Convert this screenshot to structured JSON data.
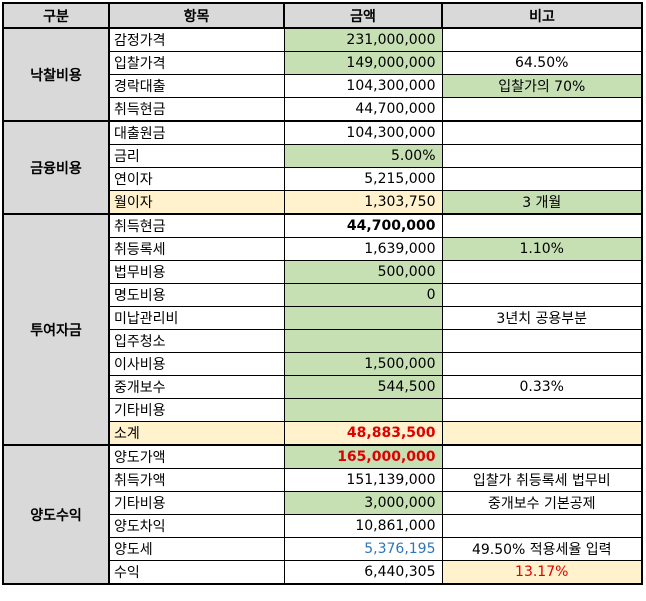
{
  "headers": [
    "구분",
    "항목",
    "금액",
    "비고"
  ],
  "colors": {
    "green": "#c6e0b4",
    "orange": "#fff2cc",
    "header": "#d9d9d9",
    "red": "#e00000",
    "blue": "#2e75b6"
  },
  "groups": [
    {
      "name": "낙찰비용",
      "rows": [
        {
          "item": "감정가격",
          "amount": "231,000,000",
          "amount_style": "green",
          "note": ""
        },
        {
          "item": "입찰가격",
          "amount": "149,000,000",
          "amount_style": "green",
          "note": "64.50%"
        },
        {
          "item": "경락대출",
          "amount": "104,300,000",
          "note": "입찰가의   70%",
          "note_style": "green"
        },
        {
          "item": "취득현금",
          "amount": "44,700,000",
          "note": ""
        }
      ]
    },
    {
      "name": "금융비용",
      "rows": [
        {
          "item": "대출원금",
          "amount": "104,300,000",
          "note": ""
        },
        {
          "item": "금리",
          "amount": "5.00%",
          "amount_style": "green",
          "note": ""
        },
        {
          "item": "연이자",
          "amount": "5,215,000",
          "note": ""
        },
        {
          "item": "월이자",
          "item_style": "orange",
          "amount": "1,303,750",
          "amount_style": "orange",
          "note": "3 개월",
          "note_style": "green"
        }
      ]
    },
    {
      "name": "투여자금",
      "rows": [
        {
          "item": "취득현금",
          "amount": "44,700,000",
          "amount_style": "bold",
          "note": ""
        },
        {
          "item": "취등록세",
          "amount": "1,639,000",
          "note": "1.10%",
          "note_style": "green"
        },
        {
          "item": "법무비용",
          "amount": "500,000",
          "amount_style": "green",
          "note": ""
        },
        {
          "item": "명도비용",
          "amount": "0",
          "amount_style": "green",
          "note": ""
        },
        {
          "item": "미납관리비",
          "amount": "",
          "amount_style": "green",
          "note": "3년치 공용부분"
        },
        {
          "item": "입주청소",
          "amount": "",
          "amount_style": "green",
          "note": ""
        },
        {
          "item": "이사비용",
          "amount": "1,500,000",
          "amount_style": "green",
          "note": ""
        },
        {
          "item": "중개보수",
          "amount": "544,500",
          "amount_style": "green",
          "note": "0.33%"
        },
        {
          "item": "기타비용",
          "amount": "",
          "amount_style": "green",
          "note": ""
        },
        {
          "item": "소계",
          "item_style": "orange",
          "amount": "48,883,500",
          "amount_style": "orange bold red",
          "note": "",
          "note_style": "orange"
        }
      ]
    },
    {
      "name": "양도수익",
      "rows": [
        {
          "item": "양도가액",
          "amount": "165,000,000",
          "amount_style": "green bold red",
          "note": ""
        },
        {
          "item": "취득가액",
          "amount": "151,139,000",
          "note": "입찰가 취등록세 법무비"
        },
        {
          "item": "기타비용",
          "amount": "3,000,000",
          "amount_style": "green",
          "note": "중개보수 기본공제"
        },
        {
          "item": "양도차익",
          "amount": "10,861,000",
          "note": ""
        },
        {
          "item": "양도세",
          "amount": "5,376,195",
          "amount_style": "blue",
          "note": "49.50% 적용세율 입력"
        },
        {
          "item": "수익",
          "amount": "6,440,305",
          "note": "13.17%",
          "note_style": "orange red"
        }
      ]
    }
  ]
}
